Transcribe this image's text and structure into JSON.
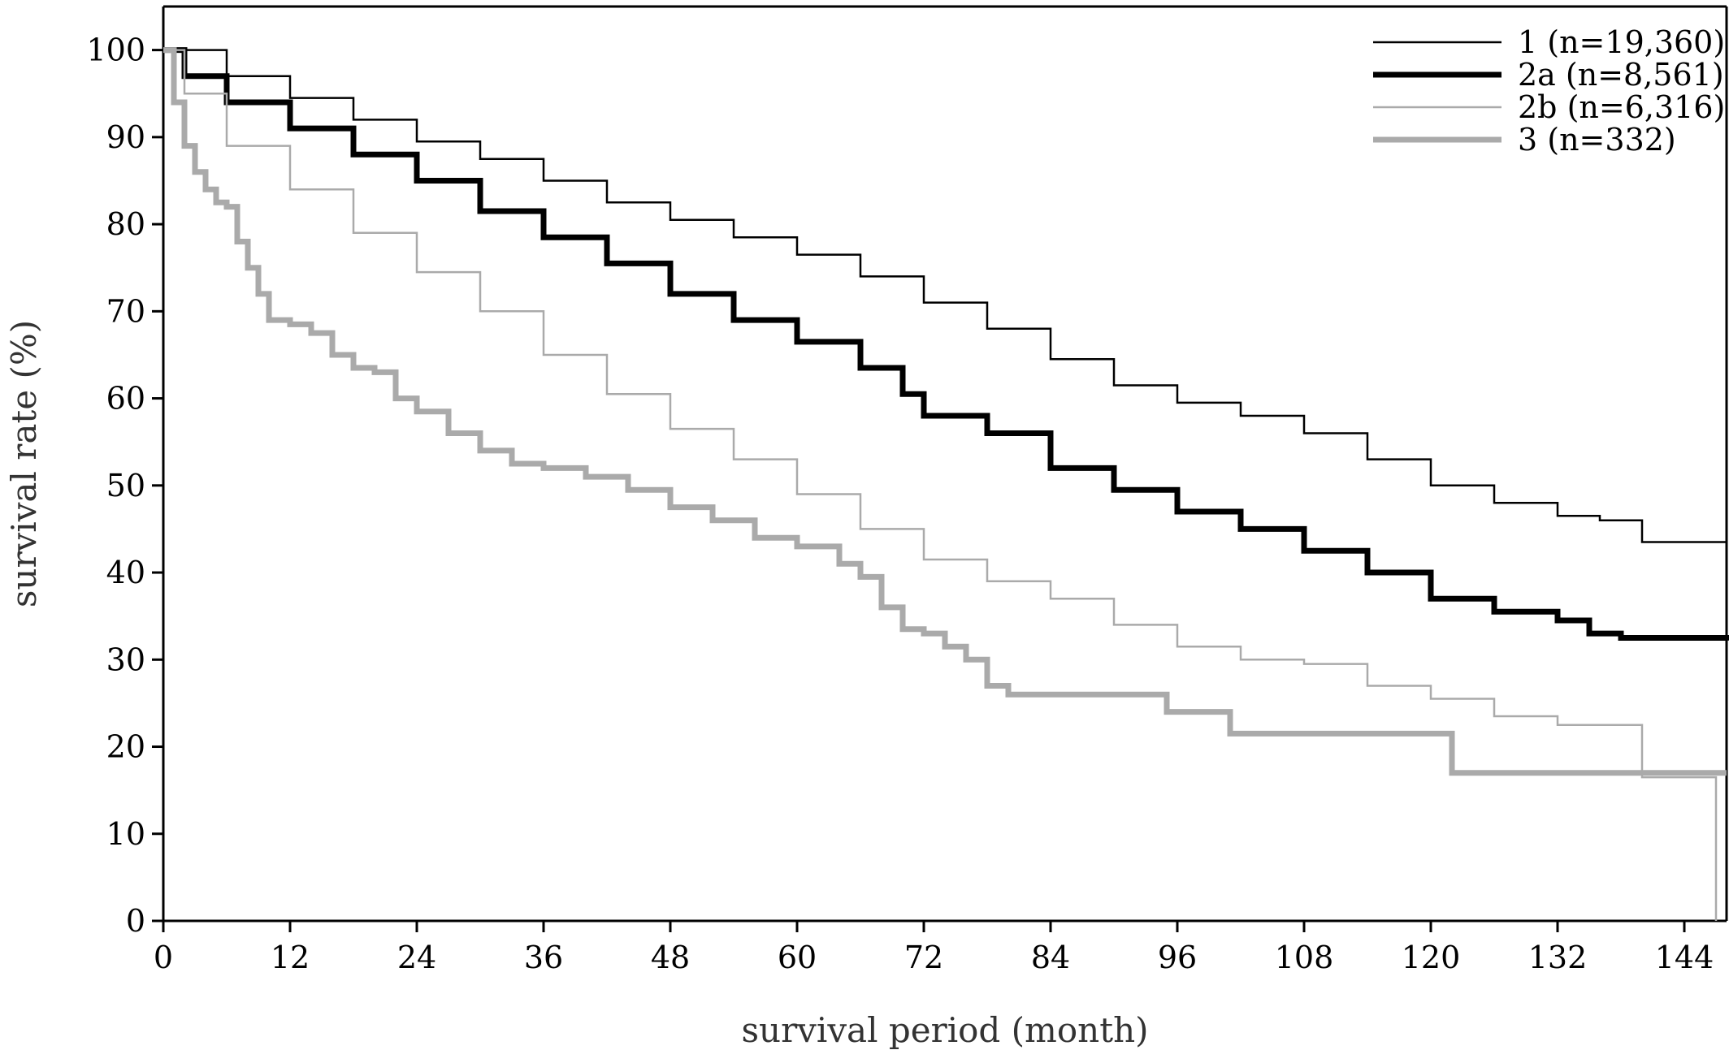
{
  "chart_data": {
    "type": "line",
    "step": true,
    "title": "",
    "xlabel": "survival period (month)",
    "ylabel": "survival rate (%)",
    "xlim": [
      0,
      148
    ],
    "ylim": [
      0,
      105
    ],
    "xticks": [
      0,
      12,
      24,
      36,
      48,
      60,
      72,
      84,
      96,
      108,
      120,
      132,
      144
    ],
    "yticks": [
      0,
      10,
      20,
      30,
      40,
      50,
      60,
      70,
      80,
      90,
      100
    ],
    "grid": false,
    "legend_position": "top-right",
    "series": [
      {
        "name": "1 (n=19,360)",
        "color": "#000000",
        "style": "thin",
        "points": [
          [
            0,
            100
          ],
          [
            6,
            97
          ],
          [
            12,
            94.5
          ],
          [
            18,
            92
          ],
          [
            24,
            89.5
          ],
          [
            30,
            87.5
          ],
          [
            36,
            85
          ],
          [
            42,
            82.5
          ],
          [
            48,
            80.5
          ],
          [
            54,
            78.5
          ],
          [
            60,
            76.5
          ],
          [
            66,
            74
          ],
          [
            72,
            71
          ],
          [
            78,
            68
          ],
          [
            84,
            64.5
          ],
          [
            90,
            61.5
          ],
          [
            96,
            59.5
          ],
          [
            102,
            58
          ],
          [
            108,
            56
          ],
          [
            114,
            53
          ],
          [
            120,
            50
          ],
          [
            126,
            48
          ],
          [
            132,
            46.5
          ],
          [
            136,
            46
          ],
          [
            140,
            43.5
          ],
          [
            148,
            43.2
          ]
        ]
      },
      {
        "name": "2a (n=8,561)",
        "color": "#000000",
        "style": "thick",
        "points": [
          [
            0,
            100
          ],
          [
            2,
            97
          ],
          [
            6,
            94
          ],
          [
            12,
            91
          ],
          [
            18,
            88
          ],
          [
            24,
            85
          ],
          [
            30,
            81.5
          ],
          [
            36,
            78.5
          ],
          [
            42,
            75.5
          ],
          [
            48,
            72
          ],
          [
            54,
            69
          ],
          [
            60,
            66.5
          ],
          [
            66,
            63.5
          ],
          [
            70,
            60.5
          ],
          [
            72,
            58
          ],
          [
            78,
            56
          ],
          [
            84,
            52
          ],
          [
            90,
            49.5
          ],
          [
            96,
            47
          ],
          [
            102,
            45
          ],
          [
            108,
            42.5
          ],
          [
            114,
            40
          ],
          [
            120,
            37
          ],
          [
            126,
            35.5
          ],
          [
            132,
            34.5
          ],
          [
            134,
            34.5
          ],
          [
            135,
            33
          ],
          [
            138,
            32.5
          ],
          [
            148,
            32.2
          ]
        ]
      },
      {
        "name": "2b (n=6,316)",
        "color": "#aaaaaa",
        "style": "thin",
        "points": [
          [
            0,
            100
          ],
          [
            2,
            95
          ],
          [
            6,
            89
          ],
          [
            12,
            84
          ],
          [
            18,
            79
          ],
          [
            24,
            74.5
          ],
          [
            30,
            70
          ],
          [
            36,
            65
          ],
          [
            42,
            60.5
          ],
          [
            48,
            56.5
          ],
          [
            54,
            53
          ],
          [
            60,
            49
          ],
          [
            66,
            45
          ],
          [
            72,
            41.5
          ],
          [
            78,
            39
          ],
          [
            84,
            37
          ],
          [
            90,
            34
          ],
          [
            96,
            31.5
          ],
          [
            102,
            30
          ],
          [
            108,
            29.5
          ],
          [
            114,
            27
          ],
          [
            120,
            25.5
          ],
          [
            126,
            23.5
          ],
          [
            132,
            22.5
          ],
          [
            139,
            22.5
          ],
          [
            140,
            16.5
          ],
          [
            147,
            16.5
          ],
          [
            147,
            0
          ]
        ]
      },
      {
        "name": "3 (n=332)",
        "color": "#aaaaaa",
        "style": "thick",
        "points": [
          [
            0,
            100
          ],
          [
            1,
            94
          ],
          [
            2,
            89
          ],
          [
            3,
            86
          ],
          [
            4,
            84
          ],
          [
            5,
            82.5
          ],
          [
            6,
            82
          ],
          [
            7,
            78
          ],
          [
            8,
            75
          ],
          [
            9,
            72
          ],
          [
            10,
            69
          ],
          [
            12,
            68.5
          ],
          [
            14,
            67.5
          ],
          [
            16,
            65
          ],
          [
            18,
            63.5
          ],
          [
            20,
            63
          ],
          [
            22,
            60
          ],
          [
            24,
            58.5
          ],
          [
            27,
            56
          ],
          [
            30,
            54
          ],
          [
            33,
            52.5
          ],
          [
            36,
            52
          ],
          [
            40,
            51
          ],
          [
            44,
            49.5
          ],
          [
            48,
            47.5
          ],
          [
            52,
            46
          ],
          [
            56,
            44
          ],
          [
            60,
            43
          ],
          [
            64,
            41
          ],
          [
            66,
            39.5
          ],
          [
            68,
            36
          ],
          [
            70,
            33.5
          ],
          [
            72,
            33
          ],
          [
            74,
            31.5
          ],
          [
            76,
            30
          ],
          [
            78,
            27
          ],
          [
            80,
            26
          ],
          [
            88,
            26
          ],
          [
            94,
            26
          ],
          [
            95,
            24
          ],
          [
            98,
            24
          ],
          [
            101,
            21.5
          ],
          [
            110,
            21.5
          ],
          [
            122,
            21.5
          ],
          [
            122,
            17
          ],
          [
            148,
            17
          ]
        ]
      }
    ]
  }
}
